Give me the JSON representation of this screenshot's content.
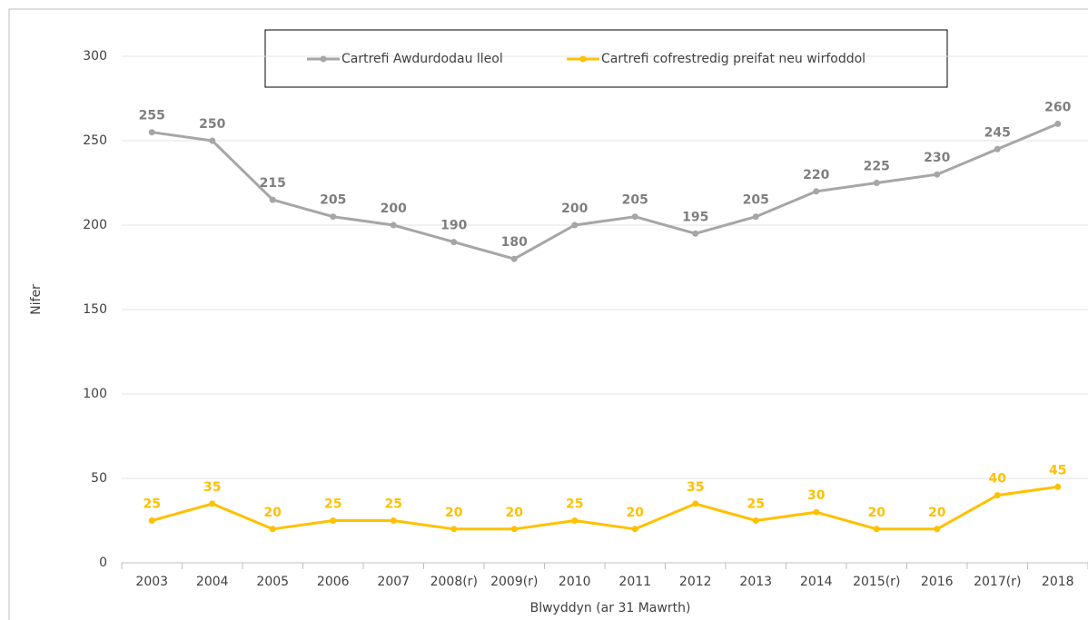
{
  "chart_data": {
    "type": "line",
    "categories": [
      "2003",
      "2004",
      "2005",
      "2006",
      "2007",
      "2008(r)",
      "2009(r)",
      "2010",
      "2011",
      "2012",
      "2013",
      "2014",
      "2015(r)",
      "2016",
      "2017(r)",
      "2018"
    ],
    "series": [
      {
        "name": "Cartrefi Awdurdodau lleol",
        "color": "#a6a6a6",
        "label_color": "#7f7f7f",
        "values": [
          255,
          250,
          215,
          205,
          200,
          190,
          180,
          200,
          205,
          195,
          205,
          220,
          225,
          230,
          245,
          260
        ]
      },
      {
        "name": "Cartrefi cofrestredig preifat neu wirfoddol",
        "color": "#ffc000",
        "label_color": "#ffc000",
        "values": [
          25,
          35,
          20,
          25,
          25,
          20,
          20,
          25,
          20,
          35,
          25,
          30,
          20,
          20,
          40,
          45
        ]
      }
    ],
    "ylabel": "Nifer",
    "xlabel": "Blwyddyn (ar 31 Mawrth)",
    "ylim": [
      0,
      300
    ],
    "yticks": [
      0,
      50,
      100,
      150,
      200,
      250,
      300
    ],
    "grid": true,
    "legend": "top"
  }
}
